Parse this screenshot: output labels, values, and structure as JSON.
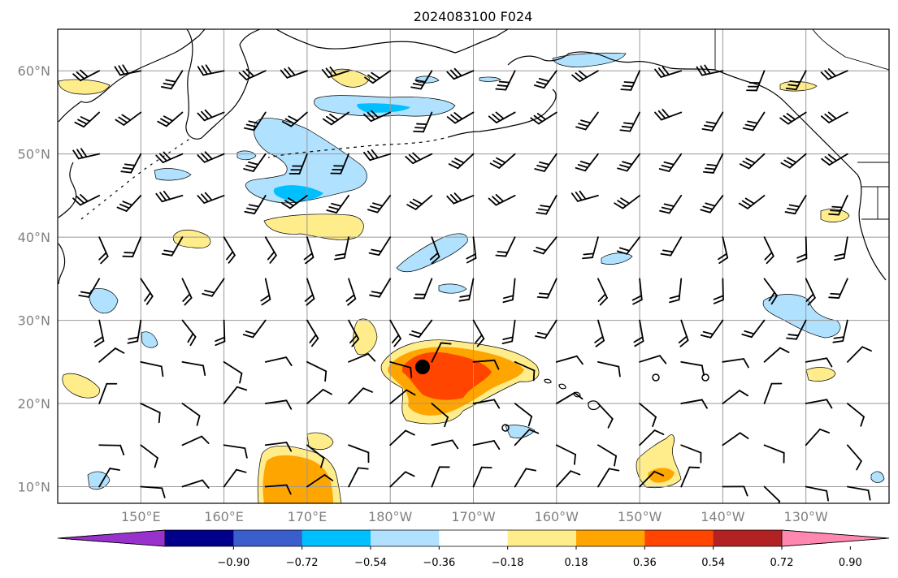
{
  "title": "2024083100 F024",
  "map": {
    "lat_labels": [
      "60°N",
      "50°N",
      "40°N",
      "30°N",
      "20°N",
      "10°N"
    ],
    "lat_values": [
      60,
      50,
      40,
      30,
      20,
      10
    ],
    "lon_labels": [
      "150°E",
      "160°E",
      "170°E",
      "180°W",
      "170°W",
      "160°W",
      "150°W",
      "140°W",
      "130°W"
    ],
    "lon_values": [
      150,
      160,
      170,
      180,
      190,
      200,
      210,
      220,
      230
    ],
    "lon_range_east": [
      140,
      240
    ],
    "lat_range": [
      8,
      65
    ],
    "grid": true,
    "storm_marker": {
      "lon": 184,
      "lat": 24.5,
      "symbol": "filled-circle"
    }
  },
  "colorbar": {
    "ticks": [
      "−0.90",
      "−0.72",
      "−0.54",
      "−0.36",
      "−0.18",
      "0.18",
      "0.36",
      "0.54",
      "0.72",
      "0.90"
    ],
    "colors": [
      "#9932cc",
      "#00008b",
      "#3a5fcd",
      "#00bfff",
      "#b0e2ff",
      "#ffffff",
      "#ffec8b",
      "#ffa500",
      "#ff4500",
      "#b22222",
      "#ff88b0"
    ],
    "extend": "both"
  }
}
